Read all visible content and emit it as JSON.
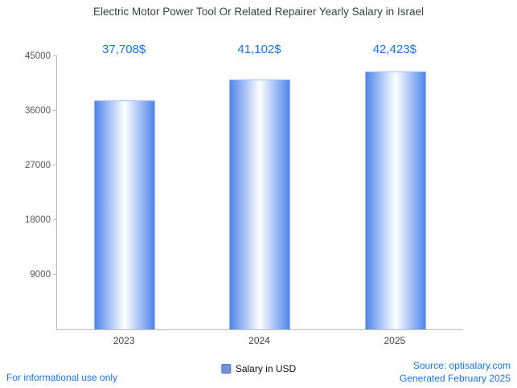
{
  "title": "Electric Motor Power Tool Or Related Repairer Yearly Salary in Israel",
  "chart_data": {
    "type": "bar",
    "title": "Electric Motor Power Tool Or Related Repairer Yearly Salary in Israel",
    "categories": [
      "2023",
      "2024",
      "2025"
    ],
    "values": [
      37708,
      41102,
      42423
    ],
    "value_labels": [
      "37,708$",
      "41,102$",
      "42,423$"
    ],
    "series_name": "Salary in USD",
    "xlabel": "",
    "ylabel": "",
    "ylim": [
      0,
      45000
    ],
    "yticks": [
      9000,
      18000,
      27000,
      36000,
      45000
    ],
    "grid": false,
    "legend_position": "bottom",
    "bar_gradient_edge": "#4f86ec",
    "bar_gradient_center": "#ffffff",
    "bar_border": "#9ab8f3"
  },
  "legend": {
    "label": "Salary in USD"
  },
  "footer": {
    "left": "For informational use only",
    "source": "Source: optisalary.com",
    "generated": "Generated February 2025"
  },
  "colors": {
    "accent_blue": "#1a73e8",
    "title_gray": "#3c4043",
    "axis_gray": "#bdbdbd"
  }
}
